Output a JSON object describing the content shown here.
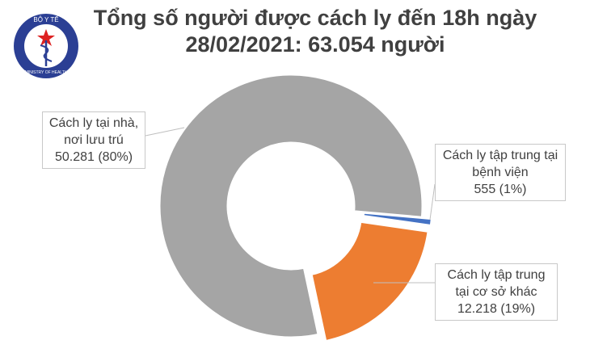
{
  "logo": {
    "top": "BỘ Y TẾ",
    "bottom": "MINISTRY OF HEALTH"
  },
  "chart_data": {
    "type": "donut",
    "title": "Tổng số người được cách ly đến 18h ngày 28/02/2021: 63.054 người",
    "categories": [
      "Cách ly tại nhà, nơi lưu trú",
      "Cách ly tập trung tại bệnh viện",
      "Cách ly tập trung tại cơ sở khác"
    ],
    "values": [
      50281,
      555,
      12218
    ],
    "value_labels": [
      "50.281 (80%)",
      "555 (1%)",
      "12.218 (19%)"
    ],
    "colors": [
      "#a5a5a5",
      "#4472c4",
      "#ed7d31"
    ]
  }
}
